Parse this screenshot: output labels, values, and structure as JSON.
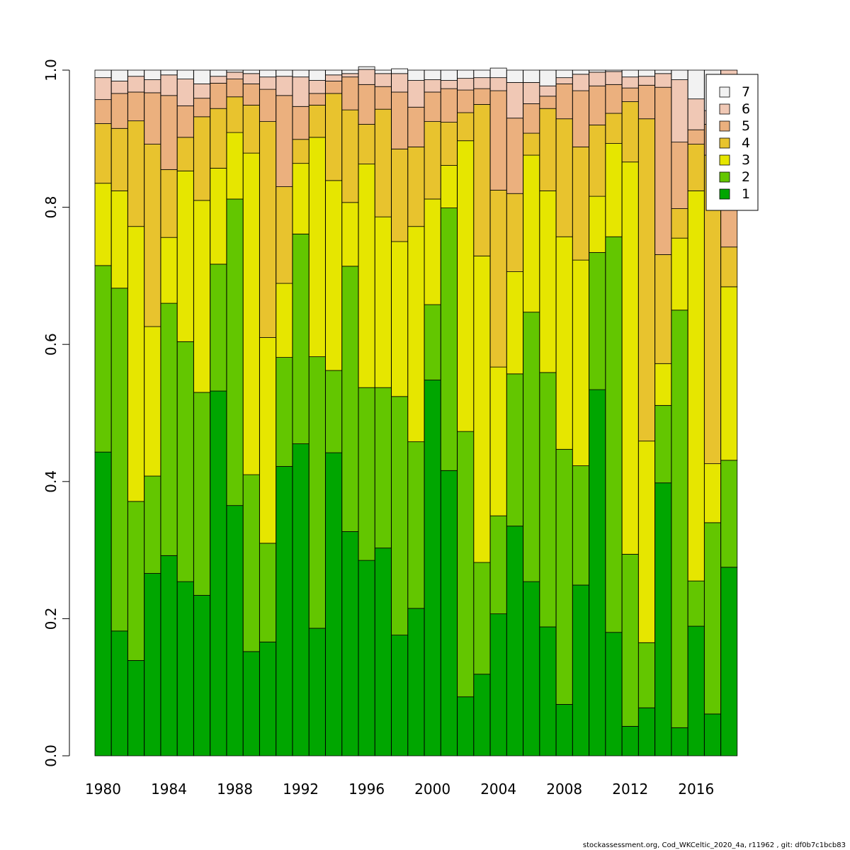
{
  "chart_data": {
    "type": "bar",
    "stacked": true,
    "title": "",
    "xlabel": "",
    "ylabel": "",
    "ylim": [
      0,
      1
    ],
    "yticks": [
      "0.0",
      "0.2",
      "0.4",
      "0.6",
      "0.8",
      "1.0"
    ],
    "xtick_labels": [
      "1980",
      "1984",
      "1988",
      "1992",
      "1996",
      "2000",
      "2004",
      "2008",
      "2012",
      "2016"
    ],
    "legend_position": "top-right",
    "categories": [
      1980,
      1981,
      1982,
      1983,
      1984,
      1985,
      1986,
      1987,
      1988,
      1989,
      1990,
      1991,
      1992,
      1993,
      1994,
      1995,
      1996,
      1997,
      1998,
      1999,
      2000,
      2001,
      2002,
      2003,
      2004,
      2005,
      2006,
      2007,
      2008,
      2009,
      2010,
      2011,
      2012,
      2013,
      2014,
      2015,
      2016,
      2017,
      2018
    ],
    "series": [
      {
        "name": "1",
        "color": "#00a600",
        "values": [
          0.443,
          0.182,
          0.139,
          0.266,
          0.292,
          0.254,
          0.234,
          0.532,
          0.365,
          0.152,
          0.166,
          0.422,
          0.455,
          0.186,
          0.442,
          0.327,
          0.285,
          0.303,
          0.176,
          0.215,
          0.548,
          0.416,
          0.086,
          0.119,
          0.207,
          0.335,
          0.254,
          0.188,
          0.075,
          0.249,
          0.534,
          0.18,
          0.043,
          0.07,
          0.398,
          0.041,
          0.189,
          0.061,
          0.275
        ]
      },
      {
        "name": "2",
        "color": "#63c600",
        "values": [
          0.272,
          0.5,
          0.232,
          0.142,
          0.368,
          0.35,
          0.296,
          0.185,
          0.447,
          0.258,
          0.144,
          0.159,
          0.306,
          0.396,
          0.12,
          0.387,
          0.252,
          0.234,
          0.348,
          0.243,
          0.11,
          0.383,
          0.387,
          0.163,
          0.143,
          0.222,
          0.393,
          0.371,
          0.372,
          0.174,
          0.2,
          0.577,
          0.251,
          0.095,
          0.113,
          0.609,
          0.066,
          0.279,
          0.156
        ]
      },
      {
        "name": "3",
        "color": "#e6e600",
        "values": [
          0.12,
          0.142,
          0.401,
          0.218,
          0.096,
          0.249,
          0.28,
          0.14,
          0.097,
          0.469,
          0.3,
          0.108,
          0.103,
          0.32,
          0.277,
          0.093,
          0.326,
          0.249,
          0.226,
          0.314,
          0.154,
          0.062,
          0.424,
          0.447,
          0.217,
          0.149,
          0.229,
          0.265,
          0.31,
          0.3,
          0.082,
          0.136,
          0.572,
          0.294,
          0.061,
          0.105,
          0.569,
          0.086,
          0.253
        ]
      },
      {
        "name": "4",
        "color": "#e8c32e",
        "values": [
          0.087,
          0.091,
          0.154,
          0.266,
          0.099,
          0.049,
          0.122,
          0.087,
          0.052,
          0.07,
          0.315,
          0.141,
          0.035,
          0.047,
          0.127,
          0.135,
          0.058,
          0.157,
          0.135,
          0.116,
          0.113,
          0.063,
          0.041,
          0.221,
          0.258,
          0.114,
          0.032,
          0.12,
          0.172,
          0.165,
          0.104,
          0.044,
          0.088,
          0.47,
          0.159,
          0.043,
          0.068,
          0.45,
          0.058
        ]
      },
      {
        "name": "5",
        "color": "#ebb07e",
        "values": [
          0.035,
          0.051,
          0.042,
          0.075,
          0.108,
          0.046,
          0.027,
          0.037,
          0.026,
          0.031,
          0.047,
          0.133,
          0.048,
          0.017,
          0.018,
          0.048,
          0.058,
          0.033,
          0.083,
          0.058,
          0.043,
          0.049,
          0.033,
          0.023,
          0.145,
          0.11,
          0.043,
          0.018,
          0.051,
          0.082,
          0.057,
          0.042,
          0.02,
          0.049,
          0.244,
          0.097,
          0.021,
          0.045,
          0.24
        ]
      },
      {
        "name": "6",
        "color": "#f0c8b5",
        "values": [
          0.032,
          0.018,
          0.023,
          0.019,
          0.03,
          0.039,
          0.021,
          0.01,
          0.01,
          0.015,
          0.018,
          0.028,
          0.043,
          0.019,
          0.009,
          0.005,
          0.022,
          0.019,
          0.027,
          0.039,
          0.018,
          0.012,
          0.017,
          0.016,
          0.019,
          0.052,
          0.031,
          0.015,
          0.009,
          0.024,
          0.02,
          0.019,
          0.016,
          0.013,
          0.02,
          0.091,
          0.045,
          0.02,
          0.018
        ]
      },
      {
        "name": "7",
        "color": "#f2f2f2",
        "values": [
          0.011,
          0.016,
          0.009,
          0.014,
          0.007,
          0.013,
          0.02,
          0.009,
          0.003,
          0.005,
          0.01,
          0.009,
          0.01,
          0.015,
          0.007,
          0.005,
          0.004,
          0.005,
          0.007,
          0.015,
          0.014,
          0.015,
          0.012,
          0.011,
          0.014,
          0.018,
          0.018,
          0.023,
          0.011,
          0.006,
          0.003,
          0.002,
          0.01,
          0.009,
          0.005,
          0.014,
          0.042,
          0.059,
          0.0
        ]
      }
    ]
  },
  "footer": {
    "text": "stockassessment.org, Cod_WKCeltic_2020_4a, r11962 , git: df0b7c1bcb83"
  }
}
